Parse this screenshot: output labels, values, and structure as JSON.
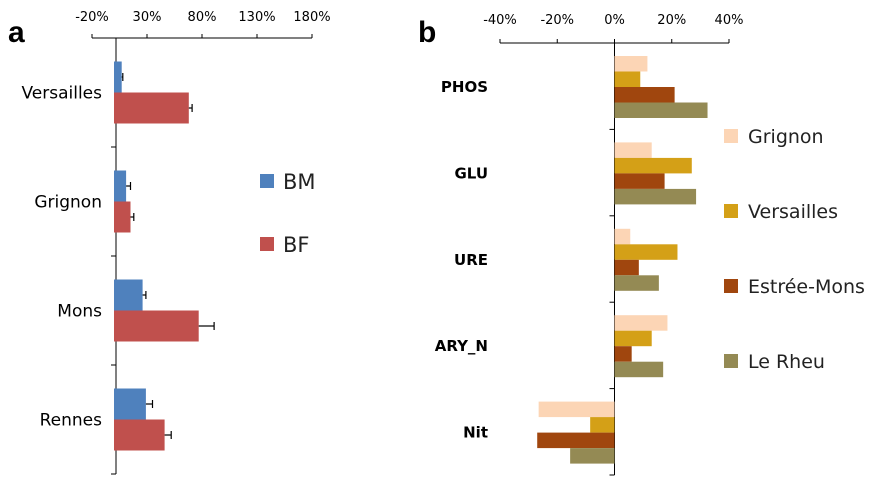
{
  "chart_data": [
    {
      "panel": "a",
      "type": "bar",
      "orientation": "horizontal",
      "categories": [
        "Versailles",
        "Grignon",
        "Mons",
        "Rennes"
      ],
      "series": [
        {
          "name": "BM",
          "color": "#4f81bd",
          "values": [
            7,
            11,
            26,
            29
          ],
          "errors": [
            1,
            4,
            3,
            6
          ]
        },
        {
          "name": "BF",
          "color": "#c0504d",
          "values": [
            68,
            15,
            77,
            46
          ],
          "errors": [
            3,
            3,
            14,
            6
          ]
        }
      ],
      "xticks": [
        "-20%",
        "30%",
        "80%",
        "130%",
        "180%"
      ],
      "xlim": [
        -20,
        180
      ],
      "axis_position": "top",
      "legend_position": "right"
    },
    {
      "panel": "b",
      "type": "bar",
      "orientation": "horizontal",
      "categories": [
        "PHOS",
        "GLU",
        "URE",
        "ARY_N",
        "Nit"
      ],
      "series": [
        {
          "name": "Grignon",
          "color": "#fcd5b5",
          "values": [
            11.5,
            13,
            5.5,
            18.5,
            -26.5
          ]
        },
        {
          "name": "Versailles",
          "color": "#d4a017",
          "values": [
            9,
            27,
            22,
            13,
            -8.5
          ]
        },
        {
          "name": "Estrée-Mons",
          "color": "#a0460e",
          "values": [
            21,
            17.5,
            8.5,
            6,
            -27
          ]
        },
        {
          "name": "Le Rheu",
          "color": "#948a54",
          "values": [
            32.5,
            28.5,
            15.5,
            17,
            -15.5
          ]
        }
      ],
      "xticks": [
        "-40%",
        "-20%",
        "0%",
        "20%",
        "40%"
      ],
      "xlim": [
        -40,
        40
      ],
      "axis_position": "top",
      "legend_position": "right"
    }
  ],
  "panel_labels": {
    "a": "a",
    "b": "b"
  }
}
